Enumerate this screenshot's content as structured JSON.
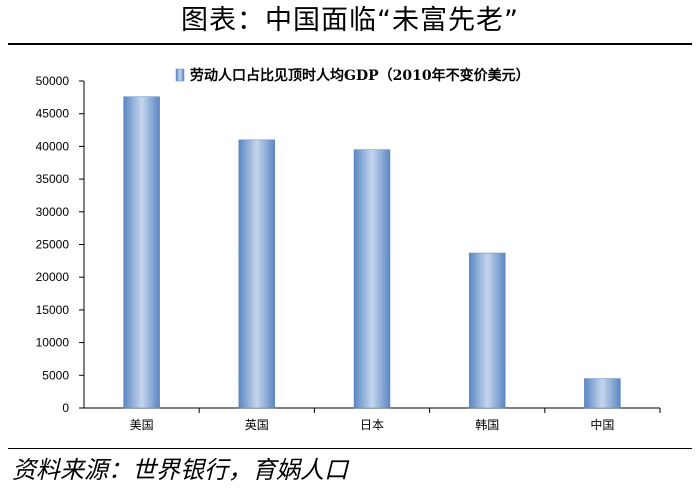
{
  "title": "图表：中国面临“未富先老”",
  "source": "资料来源：世界银行，育娲人口",
  "chart_data": {
    "type": "bar",
    "categories": [
      "美国",
      "英国",
      "日本",
      "韩国",
      "中国"
    ],
    "series": [
      {
        "name": "劳动人口占比见顶时人均GDP（2010年不变价美元）",
        "values": [
          47600,
          41000,
          39500,
          23700,
          4500
        ]
      }
    ],
    "y_ticks": [
      "0",
      "5000",
      "10000",
      "15000",
      "20000",
      "25000",
      "30000",
      "35000",
      "40000",
      "45000",
      "50000"
    ],
    "ylim": [
      0,
      50000
    ],
    "grid": false,
    "legend_position": "top",
    "colors": {
      "bar_edge": "#5b86c2",
      "bar_light": "#c5d6ee",
      "axis": "#000000"
    }
  }
}
